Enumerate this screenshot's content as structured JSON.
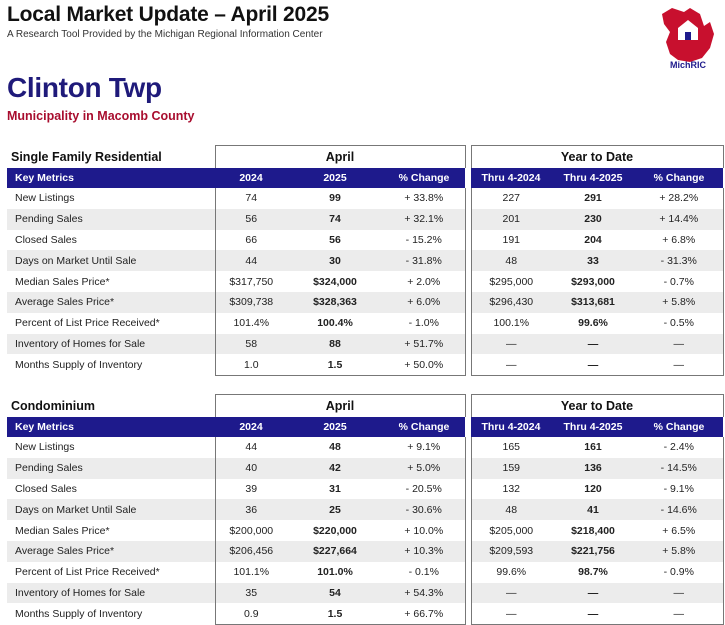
{
  "header": {
    "title": "Local Market Update – April 2025",
    "subtitle": "A Research Tool Provided by the Michigan Regional Information Center",
    "logo_text": "Michigan Regional Information Center",
    "logo_mark": "MichRIC",
    "logo_color": "#c8102e"
  },
  "municipality": "Clinton Twp",
  "county_line": "Municipality in Macomb County",
  "colors": {
    "bar": "#1e1a8c",
    "title": "#1f1a7a",
    "county": "#a80d2e"
  },
  "tables": [
    {
      "section": "Single Family Residential",
      "group_month": "April",
      "group_ytd": "Year to Date",
      "columns": [
        "Key Metrics",
        "2024",
        "2025",
        "% Change",
        "Thru 4-2024",
        "Thru 4-2025",
        "% Change"
      ],
      "rows": [
        [
          "New Listings",
          "74",
          "99",
          "+ 33.8%",
          "227",
          "291",
          "+ 28.2%"
        ],
        [
          "Pending Sales",
          "56",
          "74",
          "+ 32.1%",
          "201",
          "230",
          "+ 14.4%"
        ],
        [
          "Closed Sales",
          "66",
          "56",
          "- 15.2%",
          "191",
          "204",
          "+ 6.8%"
        ],
        [
          "Days on Market Until Sale",
          "44",
          "30",
          "- 31.8%",
          "48",
          "33",
          "- 31.3%"
        ],
        [
          "Median Sales Price*",
          "$317,750",
          "$324,000",
          "+ 2.0%",
          "$295,000",
          "$293,000",
          "- 0.7%"
        ],
        [
          "Average Sales Price*",
          "$309,738",
          "$328,363",
          "+ 6.0%",
          "$296,430",
          "$313,681",
          "+ 5.8%"
        ],
        [
          "Percent of List Price Received*",
          "101.4%",
          "100.4%",
          "- 1.0%",
          "100.1%",
          "99.6%",
          "- 0.5%"
        ],
        [
          "Inventory of Homes for Sale",
          "58",
          "88",
          "+ 51.7%",
          "—",
          "—",
          "—"
        ],
        [
          "Months Supply of Inventory",
          "1.0",
          "1.5",
          "+ 50.0%",
          "—",
          "—",
          "—"
        ]
      ]
    },
    {
      "section": "Condominium",
      "group_month": "April",
      "group_ytd": "Year to Date",
      "columns": [
        "Key Metrics",
        "2024",
        "2025",
        "% Change",
        "Thru 4-2024",
        "Thru 4-2025",
        "% Change"
      ],
      "rows": [
        [
          "New Listings",
          "44",
          "48",
          "+ 9.1%",
          "165",
          "161",
          "- 2.4%"
        ],
        [
          "Pending Sales",
          "40",
          "42",
          "+ 5.0%",
          "159",
          "136",
          "- 14.5%"
        ],
        [
          "Closed Sales",
          "39",
          "31",
          "- 20.5%",
          "132",
          "120",
          "- 9.1%"
        ],
        [
          "Days on Market Until Sale",
          "36",
          "25",
          "- 30.6%",
          "48",
          "41",
          "- 14.6%"
        ],
        [
          "Median Sales Price*",
          "$200,000",
          "$220,000",
          "+ 10.0%",
          "$205,000",
          "$218,400",
          "+ 6.5%"
        ],
        [
          "Average Sales Price*",
          "$206,456",
          "$227,664",
          "+ 10.3%",
          "$209,593",
          "$221,756",
          "+ 5.8%"
        ],
        [
          "Percent of List Price Received*",
          "101.1%",
          "101.0%",
          "- 0.1%",
          "99.6%",
          "98.7%",
          "- 0.9%"
        ],
        [
          "Inventory of Homes for Sale",
          "35",
          "54",
          "+ 54.3%",
          "—",
          "—",
          "—"
        ],
        [
          "Months Supply of Inventory",
          "0.9",
          "1.5",
          "+ 66.7%",
          "—",
          "—",
          "—"
        ]
      ]
    }
  ]
}
